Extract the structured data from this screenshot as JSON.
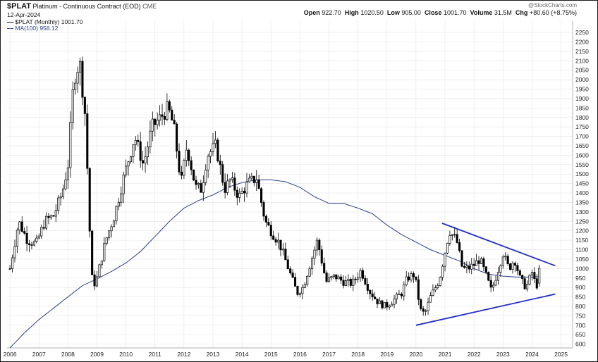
{
  "header": {
    "symbol": "$PLAT",
    "name": "Platinum - Continuous Contract (EOD)",
    "exchange": "CME",
    "date": "12-Apr-2024",
    "legend_series": "$PLAT (Monthly) 1001.70",
    "legend_ma": "MA(100) 958.12",
    "watermark": "@StockCharts.com",
    "stats": {
      "open_label": "Open",
      "open": "922.70",
      "high_label": "High",
      "high": "1020.50",
      "low_label": "Low",
      "low": "905.00",
      "close_label": "Close",
      "close": "1001.70",
      "volume_label": "Volume",
      "volume": "31.5M",
      "chg_label": "Chg",
      "chg": "+80.60 (+8.75%)"
    }
  },
  "colors": {
    "bar_fill_up": "#ffffff",
    "bar_fill_down": "#000000",
    "bar_stroke": "#000000",
    "ma_line": "#2a3f8f",
    "trendline": "#1f2ecc",
    "grid": "#e4e4e4",
    "legend_ma": "#2a3f8f"
  },
  "chart_data": {
    "type": "candlestick",
    "frequency": "monthly",
    "series_name": "$PLAT (Monthly)",
    "y_ticks": [
      600,
      650,
      700,
      750,
      800,
      850,
      900,
      950,
      1000,
      1050,
      1100,
      1150,
      1200,
      1250,
      1300,
      1350,
      1400,
      1450,
      1500,
      1550,
      1600,
      1650,
      1700,
      1750,
      1800,
      1850,
      1900,
      1950,
      2000,
      2050,
      2100,
      2150,
      2200,
      2250
    ],
    "y_range": [
      580,
      2310
    ],
    "x_ticks": [
      "2006",
      "2007",
      "2008",
      "2009",
      "2010",
      "2011",
      "2012",
      "2013",
      "2014",
      "2015",
      "2016",
      "2017",
      "2018",
      "2019",
      "2020",
      "2021",
      "2022",
      "2023",
      "2024",
      "2025"
    ],
    "x_range": [
      2005.9,
      2025.4
    ],
    "grid": true,
    "ma_period": 100,
    "price_anchors": [
      [
        2006.0,
        1000
      ],
      [
        2006.3,
        1250
      ],
      [
        2006.6,
        1150
      ],
      [
        2006.9,
        1130
      ],
      [
        2007.2,
        1250
      ],
      [
        2007.5,
        1280
      ],
      [
        2007.8,
        1400
      ],
      [
        2008.0,
        1550
      ],
      [
        2008.2,
        2000
      ],
      [
        2008.4,
        2100
      ],
      [
        2008.6,
        1800
      ],
      [
        2008.75,
        1200
      ],
      [
        2008.85,
        900
      ],
      [
        2009.0,
        950
      ],
      [
        2009.3,
        1150
      ],
      [
        2009.6,
        1280
      ],
      [
        2009.9,
        1470
      ],
      [
        2010.3,
        1700
      ],
      [
        2010.6,
        1550
      ],
      [
        2010.9,
        1750
      ],
      [
        2011.2,
        1800
      ],
      [
        2011.45,
        1850
      ],
      [
        2011.65,
        1750
      ],
      [
        2011.9,
        1450
      ],
      [
        2012.1,
        1650
      ],
      [
        2012.4,
        1430
      ],
      [
        2012.6,
        1420
      ],
      [
        2012.8,
        1600
      ],
      [
        2013.1,
        1650
      ],
      [
        2013.4,
        1420
      ],
      [
        2013.6,
        1470
      ],
      [
        2013.9,
        1380
      ],
      [
        2014.2,
        1450
      ],
      [
        2014.5,
        1480
      ],
      [
        2014.8,
        1250
      ],
      [
        2015.0,
        1200
      ],
      [
        2015.3,
        1130
      ],
      [
        2015.6,
        1000
      ],
      [
        2015.9,
        870
      ],
      [
        2016.1,
        900
      ],
      [
        2016.4,
        1050
      ],
      [
        2016.6,
        1150
      ],
      [
        2016.9,
        930
      ],
      [
        2017.2,
        960
      ],
      [
        2017.5,
        930
      ],
      [
        2017.8,
        920
      ],
      [
        2018.1,
        990
      ],
      [
        2018.4,
        880
      ],
      [
        2018.7,
        820
      ],
      [
        2018.95,
        800
      ],
      [
        2019.2,
        830
      ],
      [
        2019.5,
        870
      ],
      [
        2019.7,
        950
      ],
      [
        2019.95,
        970
      ],
      [
        2020.15,
        780
      ],
      [
        2020.3,
        760
      ],
      [
        2020.5,
        850
      ],
      [
        2020.8,
        940
      ],
      [
        2021.0,
        1090
      ],
      [
        2021.15,
        1200
      ],
      [
        2021.4,
        1150
      ],
      [
        2021.6,
        1000
      ],
      [
        2021.8,
        1000
      ],
      [
        2022.0,
        1020
      ],
      [
        2022.2,
        1050
      ],
      [
        2022.4,
        970
      ],
      [
        2022.6,
        880
      ],
      [
        2022.8,
        980
      ],
      [
        2023.0,
        1080
      ],
      [
        2023.2,
        1000
      ],
      [
        2023.4,
        1050
      ],
      [
        2023.6,
        940
      ],
      [
        2023.8,
        900
      ],
      [
        2024.0,
        980
      ],
      [
        2024.15,
        900
      ],
      [
        2024.28,
        1001.7
      ]
    ],
    "ma_anchors": [
      [
        2006.0,
        580
      ],
      [
        2006.5,
        660
      ],
      [
        2007.0,
        730
      ],
      [
        2007.5,
        790
      ],
      [
        2008.0,
        850
      ],
      [
        2008.5,
        910
      ],
      [
        2009.0,
        945
      ],
      [
        2009.5,
        985
      ],
      [
        2010.0,
        1030
      ],
      [
        2010.5,
        1090
      ],
      [
        2011.0,
        1170
      ],
      [
        2011.5,
        1250
      ],
      [
        2012.0,
        1320
      ],
      [
        2012.5,
        1360
      ],
      [
        2013.0,
        1390
      ],
      [
        2013.5,
        1430
      ],
      [
        2014.0,
        1455
      ],
      [
        2014.5,
        1470
      ],
      [
        2015.0,
        1470
      ],
      [
        2015.5,
        1460
      ],
      [
        2016.0,
        1430
      ],
      [
        2016.5,
        1380
      ],
      [
        2017.0,
        1345
      ],
      [
        2017.5,
        1345
      ],
      [
        2018.0,
        1320
      ],
      [
        2018.5,
        1290
      ],
      [
        2019.0,
        1230
      ],
      [
        2019.5,
        1180
      ],
      [
        2020.0,
        1140
      ],
      [
        2020.5,
        1100
      ],
      [
        2021.0,
        1070
      ],
      [
        2021.5,
        1040
      ],
      [
        2022.0,
        1000
      ],
      [
        2022.5,
        970
      ],
      [
        2023.0,
        960
      ],
      [
        2023.5,
        955
      ],
      [
        2024.0,
        955
      ],
      [
        2024.28,
        958.12
      ]
    ],
    "trendlines": [
      {
        "name": "upper-resistance",
        "points": [
          [
            2020.9,
            1240
          ],
          [
            2024.8,
            1015
          ]
        ]
      },
      {
        "name": "lower-support",
        "points": [
          [
            2020.0,
            700
          ],
          [
            2024.8,
            865
          ]
        ]
      }
    ]
  }
}
